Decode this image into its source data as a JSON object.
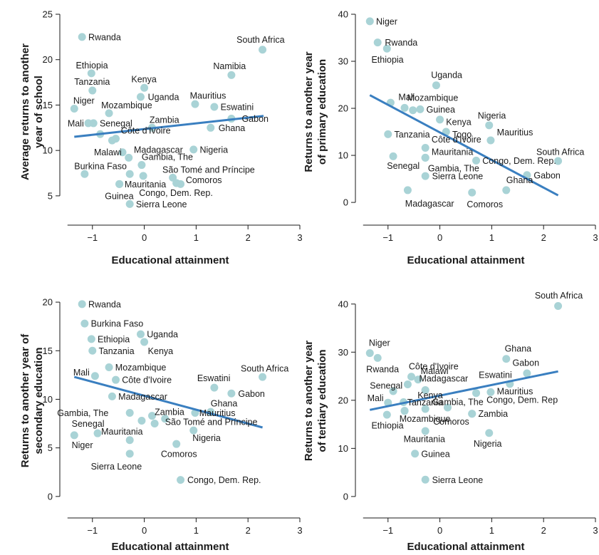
{
  "style": {
    "point_color": "#a9d3d6",
    "line_color": "#3a7fc0",
    "axis_color": "#1a1a1a"
  },
  "chart_data": [
    {
      "type": "scatter",
      "id": "panel-a",
      "xlabel": "Educational attainment",
      "ylabel": [
        "Average returns to another",
        "year of school"
      ],
      "xlim": [
        -1.45,
        3
      ],
      "ylim": [
        3.5,
        25
      ],
      "xticks": [
        -1,
        0,
        1,
        2,
        3
      ],
      "yticks": [
        5,
        10,
        15,
        20,
        25
      ],
      "xtick_labels": [
        "−1",
        "0",
        "1",
        "2",
        "3"
      ],
      "ytick_labels": [
        "5",
        "10",
        "15",
        "20",
        "25"
      ],
      "trend": {
        "x1": -1.35,
        "y1": 11.5,
        "x2": 2.3,
        "y2": 13.8
      },
      "points": [
        {
          "label": "Rwanda",
          "x": -1.2,
          "y": 22.5,
          "lx": 0.12,
          "ly": 0.0
        },
        {
          "label": "South Africa",
          "x": 2.28,
          "y": 21.1,
          "lx": -0.5,
          "ly": 1.1
        },
        {
          "label": "Ethiopia",
          "x": -1.02,
          "y": 18.5,
          "lx": -0.3,
          "ly": 0.9
        },
        {
          "label": "Namibia",
          "x": 1.68,
          "y": 18.3,
          "lx": -0.35,
          "ly": 1.0
        },
        {
          "label": "Tanzania",
          "x": -1.0,
          "y": 16.6,
          "lx": -0.35,
          "ly": 1.0
        },
        {
          "label": "Kenya",
          "x": 0.0,
          "y": 16.9,
          "lx": -0.25,
          "ly": 0.95
        },
        {
          "label": "Uganda",
          "x": -0.07,
          "y": 15.9,
          "lx": 0.14,
          "ly": 0.0
        },
        {
          "label": "Niger",
          "x": -1.35,
          "y": 14.6,
          "lx": -0.02,
          "ly": 0.9
        },
        {
          "label": "Mauritius",
          "x": 0.98,
          "y": 15.1,
          "lx": -0.1,
          "ly": 0.95
        },
        {
          "label": "Eswatini",
          "x": 1.35,
          "y": 14.8,
          "lx": 0.12,
          "ly": 0.0
        },
        {
          "label": "Mozambique",
          "x": -0.68,
          "y": 14.1,
          "lx": -0.15,
          "ly": 0.9
        },
        {
          "label": "Gabon",
          "x": 1.68,
          "y": 13.5,
          "lx": 0.2,
          "ly": 0.0
        },
        {
          "label": "Mali",
          "x": -1.08,
          "y": 13.0,
          "lx": -0.4,
          "ly": 0.0
        },
        {
          "label": "Senegal",
          "x": -0.98,
          "y": 13.0,
          "lx": 0.12,
          "ly": 0.0
        },
        {
          "label": "Zambia",
          "x": 0.15,
          "y": 12.5,
          "lx": -0.05,
          "ly": 0.9
        },
        {
          "label": "Ghana",
          "x": 1.28,
          "y": 12.5,
          "lx": 0.15,
          "ly": 0.0
        },
        {
          "label": "Côte d'Ivoire",
          "x": -0.55,
          "y": 11.3,
          "lx": 0.1,
          "ly": 0.9
        },
        {
          "label": "",
          "x": -0.85,
          "y": 11.8,
          "lx": 0,
          "ly": 0
        },
        {
          "label": "",
          "x": -0.62,
          "y": 11.1,
          "lx": 0,
          "ly": 0
        },
        {
          "label": "Nigeria",
          "x": 0.95,
          "y": 10.1,
          "lx": 0.12,
          "ly": 0.0
        },
        {
          "label": "Madagascar",
          "x": -0.3,
          "y": 9.2,
          "lx": 0.1,
          "ly": 0.9
        },
        {
          "label": "Malawi",
          "x": -0.42,
          "y": 9.8,
          "lx": -0.55,
          "ly": 0.0
        },
        {
          "label": "Gambia, The",
          "x": -0.05,
          "y": 8.4,
          "lx": 0.0,
          "ly": 0.9
        },
        {
          "label": "Burkina Faso",
          "x": -1.15,
          "y": 7.4,
          "lx": -0.2,
          "ly": 0.9
        },
        {
          "label": "",
          "x": -0.28,
          "y": 7.4,
          "lx": 0,
          "ly": 0
        },
        {
          "label": "",
          "x": -0.02,
          "y": 7.2,
          "lx": 0,
          "ly": 0
        },
        {
          "label": "São Tomé and Príncipe",
          "x": 0.55,
          "y": 7.0,
          "lx": -0.2,
          "ly": 0.9
        },
        {
          "label": "Comoros",
          "x": 0.7,
          "y": 6.3,
          "lx": 0.1,
          "ly": 0.45
        },
        {
          "label": "",
          "x": 0.62,
          "y": 6.4,
          "lx": 0,
          "ly": 0
        },
        {
          "label": "Mauritania",
          "x": -0.48,
          "y": 6.3,
          "lx": 0.1,
          "ly": 0.0
        },
        {
          "label": "Guinea",
          "x": -0.48,
          "y": 6.3,
          "lx": -0.28,
          "ly": -1.3
        },
        {
          "label": "Congo, Dem. Rep.",
          "x": 0.62,
          "y": 6.4,
          "lx": -0.72,
          "ly": -1.05
        },
        {
          "label": "Sierra Leone",
          "x": -0.28,
          "y": 4.1,
          "lx": 0.12,
          "ly": 0.0
        }
      ]
    },
    {
      "type": "scatter",
      "id": "panel-b",
      "xlabel": "Educational attainment",
      "ylabel": [
        "Returns to another year",
        "of primary education"
      ],
      "xlim": [
        -1.45,
        3
      ],
      "ylim": [
        -1.5,
        40
      ],
      "xticks": [
        -1,
        0,
        1,
        2,
        3
      ],
      "yticks": [
        0,
        10,
        20,
        30,
        40
      ],
      "xtick_labels": [
        "−1",
        "0",
        "1",
        "2",
        "3"
      ],
      "ytick_labels": [
        "0",
        "10",
        "20",
        "30",
        "40"
      ],
      "trend": {
        "x1": -1.35,
        "y1": 22.8,
        "x2": 2.28,
        "y2": 1.5
      },
      "points": [
        {
          "label": "Niger",
          "x": -1.35,
          "y": 38.5,
          "lx": 0.12,
          "ly": 0.0
        },
        {
          "label": "Rwanda",
          "x": -1.2,
          "y": 34.0,
          "lx": 0.14,
          "ly": 0.0
        },
        {
          "label": "Ethiopia",
          "x": -1.02,
          "y": 32.7,
          "lx": -0.3,
          "ly": -2.3
        },
        {
          "label": "Uganda",
          "x": -0.07,
          "y": 24.9,
          "lx": -0.1,
          "ly": 2.2
        },
        {
          "label": "Mali",
          "x": -0.95,
          "y": 21.2,
          "lx": 0.15,
          "ly": 1.2
        },
        {
          "label": "Mozambique",
          "x": -0.68,
          "y": 20.1,
          "lx": 0.05,
          "ly": 2.2
        },
        {
          "label": "",
          "x": -0.52,
          "y": 19.6,
          "lx": 0,
          "ly": 0
        },
        {
          "label": "Guinea",
          "x": -0.38,
          "y": 19.8,
          "lx": 0.12,
          "ly": 0.0
        },
        {
          "label": "Nigeria",
          "x": 0.95,
          "y": 16.4,
          "lx": -0.22,
          "ly": 2.1
        },
        {
          "label": "Kenya",
          "x": 0.0,
          "y": 17.6,
          "lx": 0.12,
          "ly": -0.5
        },
        {
          "label": "Tanzania",
          "x": -1.0,
          "y": 14.5,
          "lx": 0.12,
          "ly": 0.0
        },
        {
          "label": "Togo",
          "x": 0.12,
          "y": 15.0,
          "lx": 0.12,
          "ly": -0.5
        },
        {
          "label": "Mauritius",
          "x": 0.98,
          "y": 13.2,
          "lx": 0.12,
          "ly": 1.7
        },
        {
          "label": "Côte d'Ivoire",
          "x": -0.28,
          "y": 11.6,
          "lx": 0.12,
          "ly": 1.8
        },
        {
          "label": "Mauritania",
          "x": -0.28,
          "y": 9.5,
          "lx": 0.12,
          "ly": 1.3
        },
        {
          "label": "Senegal",
          "x": -0.9,
          "y": 9.8,
          "lx": -0.12,
          "ly": -2.0
        },
        {
          "label": "Gambia, The",
          "x": -0.28,
          "y": 9.5,
          "lx": 0.05,
          "ly": -2.2
        },
        {
          "label": "Congo, Dem. Rep.",
          "x": 0.7,
          "y": 8.9,
          "lx": 0.12,
          "ly": 0.0
        },
        {
          "label": "South Africa",
          "x": 2.28,
          "y": 8.8,
          "lx": -0.42,
          "ly": 2.0
        },
        {
          "label": "Gabon",
          "x": 1.68,
          "y": 5.8,
          "lx": 0.13,
          "ly": 0.0
        },
        {
          "label": "Sierra Leone",
          "x": -0.28,
          "y": 5.6,
          "lx": 0.13,
          "ly": 0.0
        },
        {
          "label": "Ghana",
          "x": 1.28,
          "y": 2.6,
          "lx": 0.0,
          "ly": 2.2
        },
        {
          "label": "Madagascar",
          "x": -0.62,
          "y": 2.6,
          "lx": -0.05,
          "ly": -2.8
        },
        {
          "label": "Comoros",
          "x": 0.62,
          "y": 2.1,
          "lx": -0.1,
          "ly": -2.5
        }
      ]
    },
    {
      "type": "scatter",
      "id": "panel-c",
      "xlabel": "Educational attainment",
      "ylabel": [
        "Returns to another year of",
        "secondary education"
      ],
      "xlim": [
        -1.45,
        3
      ],
      "ylim": [
        -0.6,
        20.3
      ],
      "xticks": [
        -1,
        0,
        1,
        2,
        3
      ],
      "yticks": [
        0,
        5,
        10,
        15,
        20
      ],
      "xtick_labels": [
        "−1",
        "0",
        "1",
        "2",
        "3"
      ],
      "ytick_labels": [
        "0",
        "5",
        "10",
        "15",
        "20"
      ],
      "trend": {
        "x1": -1.35,
        "y1": 12.3,
        "x2": 2.28,
        "y2": 7.1
      },
      "points": [
        {
          "label": "Rwanda",
          "x": -1.2,
          "y": 19.8,
          "lx": 0.12,
          "ly": 0.0
        },
        {
          "label": "Burkina Faso",
          "x": -1.15,
          "y": 17.8,
          "lx": 0.12,
          "ly": 0.0
        },
        {
          "label": "Ethiopia",
          "x": -1.02,
          "y": 16.2,
          "lx": 0.12,
          "ly": 0.0
        },
        {
          "label": "Uganda",
          "x": -0.07,
          "y": 16.7,
          "lx": 0.12,
          "ly": 0.0
        },
        {
          "label": "Tanzania",
          "x": -1.0,
          "y": 15.0,
          "lx": 0.12,
          "ly": 0.0
        },
        {
          "label": "Kenya",
          "x": 0.0,
          "y": 15.9,
          "lx": 0.07,
          "ly": -0.9
        },
        {
          "label": "Mali",
          "x": -0.95,
          "y": 12.4,
          "lx": -0.42,
          "ly": 0.4
        },
        {
          "label": "Mozambique",
          "x": -0.68,
          "y": 13.3,
          "lx": 0.12,
          "ly": 0.0
        },
        {
          "label": "Côte d'Ivoire",
          "x": -0.55,
          "y": 12.0,
          "lx": 0.12,
          "ly": 0.0
        },
        {
          "label": "South Africa",
          "x": 2.28,
          "y": 12.3,
          "lx": -0.42,
          "ly": 0.9
        },
        {
          "label": "Eswatini",
          "x": 1.35,
          "y": 11.2,
          "lx": -0.33,
          "ly": 1.0
        },
        {
          "label": "Madagascar",
          "x": -0.62,
          "y": 10.3,
          "lx": 0.12,
          "ly": 0.0
        },
        {
          "label": "Gabon",
          "x": 1.68,
          "y": 10.6,
          "lx": 0.13,
          "ly": 0.0
        },
        {
          "label": "Ghana",
          "x": 1.28,
          "y": 8.7,
          "lx": 0.0,
          "ly": 0.9
        },
        {
          "label": "Mauritius",
          "x": 0.98,
          "y": 8.6,
          "lx": 0.08,
          "ly": 0.0
        },
        {
          "label": "Gambia, The",
          "x": -0.28,
          "y": 8.6,
          "lx": -1.4,
          "ly": 0.0
        },
        {
          "label": "Zambia",
          "x": 0.15,
          "y": 8.3,
          "lx": 0.05,
          "ly": 0.4
        },
        {
          "label": "",
          "x": 0.2,
          "y": 7.5,
          "lx": 0,
          "ly": 0
        },
        {
          "label": "",
          "x": -0.05,
          "y": 7.8,
          "lx": 0,
          "ly": 0
        },
        {
          "label": "São Tomé and Príncipe",
          "x": 0.4,
          "y": 8.0,
          "lx": 0.0,
          "ly": -0.3
        },
        {
          "label": "Senegal",
          "x": -0.9,
          "y": 6.5,
          "lx": -0.5,
          "ly": 1.0
        },
        {
          "label": "Mauritania",
          "x": -0.28,
          "y": 5.8,
          "lx": -0.55,
          "ly": 0.9
        },
        {
          "label": "Niger",
          "x": -1.35,
          "y": 6.3,
          "lx": -0.05,
          "ly": -1.0
        },
        {
          "label": "Nigeria",
          "x": 0.95,
          "y": 6.8,
          "lx": -0.02,
          "ly": -0.75
        },
        {
          "label": "Comoros",
          "x": 0.62,
          "y": 5.4,
          "lx": -0.3,
          "ly": -1.0
        },
        {
          "label": "Sierra Leone",
          "x": -0.28,
          "y": 4.4,
          "lx": -0.75,
          "ly": -1.3
        },
        {
          "label": "Congo, Dem. Rep.",
          "x": 0.7,
          "y": 1.7,
          "lx": 0.13,
          "ly": 0.0
        }
      ]
    },
    {
      "type": "scatter",
      "id": "panel-d",
      "xlabel": "Educational attainment",
      "ylabel": [
        "Returns to another year",
        "of tertiary education"
      ],
      "xlim": [
        -1.45,
        3
      ],
      "ylim": [
        -1.2,
        41
      ],
      "xticks": [
        -1,
        0,
        1,
        2,
        3
      ],
      "yticks": [
        0,
        10,
        20,
        30,
        40
      ],
      "xtick_labels": [
        "−1",
        "0",
        "1",
        "2",
        "3"
      ],
      "ytick_labels": [
        "0",
        "10",
        "20",
        "30",
        "40"
      ],
      "trend": {
        "x1": -1.35,
        "y1": 18.0,
        "x2": 2.28,
        "y2": 26.0
      },
      "points": [
        {
          "label": "South Africa",
          "x": 2.28,
          "y": 39.6,
          "lx": -0.45,
          "ly": 2.2
        },
        {
          "label": "Niger",
          "x": -1.35,
          "y": 29.8,
          "lx": -0.02,
          "ly": 2.2
        },
        {
          "label": "Rwanda",
          "x": -1.2,
          "y": 28.8,
          "lx": -0.22,
          "ly": -2.3
        },
        {
          "label": "Côte d'Ivoire",
          "x": -0.55,
          "y": 24.9,
          "lx": -0.05,
          "ly": 2.2
        },
        {
          "label": "Ghana",
          "x": 1.28,
          "y": 28.6,
          "lx": -0.03,
          "ly": 2.2
        },
        {
          "label": "Gabon",
          "x": 1.68,
          "y": 25.6,
          "lx": -0.28,
          "ly": 2.2
        },
        {
          "label": "Malawi",
          "x": -0.42,
          "y": 24.3,
          "lx": 0.05,
          "ly": 1.8
        },
        {
          "label": "Madagascar",
          "x": -0.62,
          "y": 23.3,
          "lx": 0.22,
          "ly": 1.3
        },
        {
          "label": "Eswatini",
          "x": 1.35,
          "y": 23.4,
          "lx": -0.6,
          "ly": 1.9
        },
        {
          "label": "Mauritius",
          "x": 0.98,
          "y": 21.7,
          "lx": 0.12,
          "ly": 0.2
        },
        {
          "label": "Senegal",
          "x": -0.9,
          "y": 21.9,
          "lx": -0.45,
          "ly": 1.2
        },
        {
          "label": "Kenya",
          "x": -0.28,
          "y": 22.1,
          "lx": -0.15,
          "ly": -1.0
        },
        {
          "label": "",
          "x": -0.28,
          "y": 22.1,
          "lx": 0,
          "ly": 0
        },
        {
          "label": "Congo, Dem. Rep",
          "x": 0.7,
          "y": 21.5,
          "lx": 0.2,
          "ly": -1.4
        },
        {
          "label": "Mali",
          "x": -1.0,
          "y": 19.5,
          "lx": -0.4,
          "ly": 1.0
        },
        {
          "label": "Tanzania",
          "x": -0.7,
          "y": 19.6,
          "lx": 0.07,
          "ly": 0.0
        },
        {
          "label": "Gambia, The",
          "x": 0.15,
          "y": 18.5,
          "lx": -0.3,
          "ly": 1.2
        },
        {
          "label": "Zambia",
          "x": 0.62,
          "y": 17.2,
          "lx": 0.12,
          "ly": 0.0
        },
        {
          "label": "",
          "x": -0.68,
          "y": 17.8,
          "lx": 0,
          "ly": 0
        },
        {
          "label": "",
          "x": -0.28,
          "y": 18.2,
          "lx": 0,
          "ly": 0
        },
        {
          "label": "Ethiopia",
          "x": -1.02,
          "y": 17.0,
          "lx": -0.3,
          "ly": -2.2
        },
        {
          "label": "Mozambique",
          "x": -0.68,
          "y": 17.8,
          "lx": -0.1,
          "ly": -1.6
        },
        {
          "label": "Comoros",
          "x": 0.62,
          "y": 17.2,
          "lx": -0.75,
          "ly": -1.6
        },
        {
          "label": "Mauritania",
          "x": -0.28,
          "y": 13.6,
          "lx": -0.42,
          "ly": -1.6
        },
        {
          "label": "Nigeria",
          "x": 0.95,
          "y": 13.2,
          "lx": -0.3,
          "ly": -2.2
        },
        {
          "label": "Guinea",
          "x": -0.48,
          "y": 8.9,
          "lx": 0.12,
          "ly": 0.0
        },
        {
          "label": "Sierra Leone",
          "x": -0.28,
          "y": 3.5,
          "lx": 0.13,
          "ly": 0.0
        }
      ]
    }
  ]
}
